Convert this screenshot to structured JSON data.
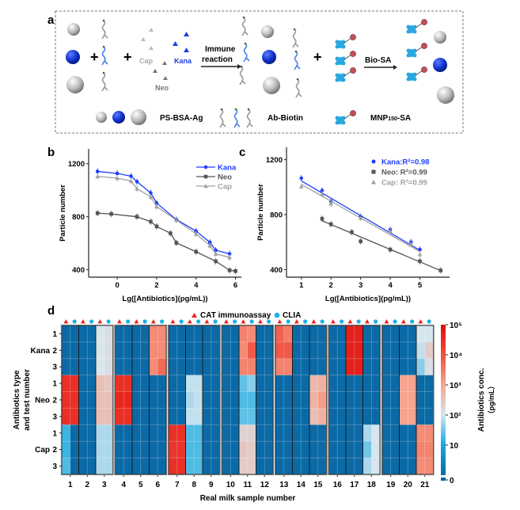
{
  "panel_labels": {
    "a": "a",
    "b": "b",
    "c": "c",
    "d": "d"
  },
  "scheme": {
    "cap": "Cap",
    "neo": "Neo",
    "kana": "Kana",
    "immune_line1": "Immune",
    "immune_line2": "reaction",
    "bio_sa": "Bio-SA",
    "ps_bsa_ag": "PS-BSA-Ag",
    "ab_biotin": "Ab-Biotin",
    "mnp_prefix": "MNP",
    "mnp_sub": "150",
    "mnp_suffix": "-SA",
    "colors": {
      "kana": "#1f3fe0",
      "neo": "#555555",
      "cap": "#9a9a9a",
      "mnp": "#2aa8e0",
      "bead": "#c0505a"
    }
  },
  "chart_data": [
    {
      "id": "b",
      "type": "line",
      "xlabel": "Lg([Antibiotics](pg/mL))",
      "ylabel": "Particle number",
      "xticks": [
        0,
        2,
        4,
        6
      ],
      "yticks": [
        400,
        800,
        1200
      ],
      "xlim": [
        -1.45,
        6.3
      ],
      "ylim": [
        344,
        1312
      ],
      "grid": false,
      "legend": "top-right",
      "series": [
        {
          "name": "Kana",
          "color": "#1f3fff",
          "marker": "circle",
          "x": [
            -1,
            0,
            0.7,
            1,
            1.7,
            2,
            3,
            4,
            4.7,
            5,
            5.7
          ],
          "y": [
            1142,
            1127,
            1106,
            1065,
            980,
            903,
            779,
            692,
            607,
            547,
            520
          ]
        },
        {
          "name": "Neo",
          "color": "#555555",
          "marker": "square",
          "x": [
            -1,
            -0.3,
            1,
            1.7,
            2,
            2.7,
            3,
            4,
            5,
            5.7,
            6
          ],
          "y": [
            827,
            821,
            800,
            763,
            727,
            675,
            603,
            536,
            464,
            396,
            390
          ]
        },
        {
          "name": "Cap",
          "color": "#a0a0a0",
          "marker": "triangle",
          "x": [
            -1,
            0,
            0.7,
            1,
            1.7,
            2,
            3,
            4,
            4.7,
            5,
            5.7
          ],
          "y": [
            1105,
            1091,
            1070,
            1012,
            950,
            877,
            775,
            671,
            582,
            520,
            493
          ]
        }
      ]
    },
    {
      "id": "c",
      "type": "scatter",
      "xlabel": "Lg([Antibiotics](pg/mL))",
      "ylabel": "Particle number",
      "xticks": [
        1,
        2,
        3,
        4,
        5
      ],
      "yticks": [
        400,
        800,
        1200
      ],
      "xlim": [
        0.5,
        6.0
      ],
      "ylim": [
        344,
        1290
      ],
      "grid": false,
      "legend": "top-right",
      "series": [
        {
          "name": "Kana:R²=0.98",
          "color": "#1f3fff",
          "marker": "circle",
          "x": [
            1,
            1.7,
            2,
            3,
            4,
            4.7,
            5
          ],
          "y": [
            1065,
            975,
            895,
            785,
            690,
            600,
            545
          ],
          "fit": {
            "x": [
              1,
              5
            ],
            "y": [
              1045,
              540
            ]
          }
        },
        {
          "name": "Neo: R²=0.99",
          "color": "#555555",
          "marker": "square",
          "x": [
            1.7,
            2,
            2.7,
            3,
            4,
            5,
            5.7
          ],
          "y": [
            770,
            730,
            672,
            605,
            545,
            460,
            393
          ],
          "fit": {
            "x": [
              1.7,
              5.7
            ],
            "y": [
              755,
              392
            ]
          }
        },
        {
          "name": "Cap: R²=0.99",
          "color": "#a0a0a0",
          "marker": "triangle",
          "x": [
            1,
            1.7,
            2,
            3,
            4,
            4.7,
            5
          ],
          "y": [
            1005,
            950,
            880,
            775,
            680,
            585,
            510
          ],
          "fit": {
            "x": [
              1,
              5
            ],
            "y": [
              1020,
              530
            ]
          }
        }
      ]
    },
    {
      "id": "d",
      "type": "heatmap",
      "xlabel": "Real milk sample number",
      "ylabel_line1": "Antibiotics type",
      "ylabel_line2": "and test number",
      "samples": [
        "1",
        "2",
        "3",
        "4",
        "5",
        "6",
        "7",
        "8",
        "9",
        "10",
        "11",
        "12",
        "13",
        "14",
        "15",
        "16",
        "17",
        "18",
        "19",
        "20",
        "21"
      ],
      "methods": [
        {
          "name": "CAT immunoassay",
          "marker": "triangle",
          "color": "#ee2222"
        },
        {
          "name": "CLIA",
          "marker": "circle",
          "color": "#1ab0ea"
        }
      ],
      "row_groups": [
        "Kana",
        "Neo",
        "Cap"
      ],
      "test_numbers": [
        "1",
        "2",
        "3"
      ],
      "colorbar": {
        "label_line1": "Antibiotics conc.",
        "label_line2": "（pg/mL）",
        "scale": "log",
        "ticks": [
          "10⁵",
          "10⁴",
          "10³",
          "10²",
          "10",
          "0"
        ],
        "stops": [
          "#0b6aa6",
          "#14a8e0",
          "#d6e6ef",
          "#f6a48e",
          "#ef5040",
          "#e00c0c"
        ]
      },
      "unit": "pg/mL",
      "values_note_order": "each row: sample 1 CAT, sample 1 CLIA, sample 2 CAT, ...",
      "values": [
        [
          0,
          0,
          0,
          0,
          100,
          130,
          0,
          0,
          0,
          0,
          2000,
          2000,
          0,
          0,
          0,
          0,
          0,
          0,
          0,
          0,
          2500,
          2000,
          0,
          0,
          6000,
          3000,
          0,
          0,
          0,
          0,
          0,
          0,
          50000,
          50000,
          0,
          0,
          0,
          0,
          0,
          0,
          100,
          100
        ],
        [
          0,
          0,
          0,
          0,
          100,
          130,
          0,
          0,
          0,
          0,
          2000,
          2000,
          0,
          0,
          0,
          0,
          0,
          0,
          0,
          0,
          2000,
          8000,
          0,
          0,
          8000,
          8000,
          0,
          0,
          0,
          0,
          0,
          0,
          50000,
          50000,
          0,
          0,
          0,
          0,
          0,
          0,
          80,
          250
        ],
        [
          0,
          0,
          0,
          0,
          100,
          130,
          0,
          0,
          0,
          0,
          2000,
          5000,
          0,
          0,
          0,
          0,
          0,
          0,
          0,
          0,
          2500,
          2500,
          0,
          0,
          2500,
          2500,
          0,
          0,
          0,
          0,
          0,
          0,
          50000,
          50000,
          0,
          0,
          0,
          0,
          0,
          0,
          40,
          130
        ],
        [
          30000,
          30000,
          0,
          0,
          400,
          300,
          30000,
          30000,
          0,
          0,
          0,
          0,
          0,
          0,
          80,
          80,
          0,
          0,
          0,
          0,
          25,
          40,
          0,
          0,
          0,
          0,
          0,
          0,
          500,
          600,
          0,
          0,
          0,
          0,
          0,
          0,
          0,
          0,
          1000,
          1000,
          0,
          0
        ],
        [
          30000,
          30000,
          0,
          0,
          400,
          400,
          40000,
          40000,
          0,
          0,
          0,
          0,
          0,
          0,
          60,
          80,
          0,
          0,
          0,
          0,
          20,
          20,
          0,
          0,
          0,
          0,
          0,
          0,
          600,
          1200,
          0,
          0,
          0,
          0,
          0,
          0,
          0,
          0,
          1000,
          1000,
          0,
          0
        ],
        [
          30000,
          30000,
          0,
          0,
          400,
          400,
          30000,
          30000,
          0,
          0,
          0,
          0,
          0,
          0,
          80,
          80,
          0,
          0,
          0,
          0,
          25,
          25,
          0,
          0,
          0,
          0,
          0,
          0,
          400,
          600,
          0,
          0,
          0,
          0,
          0,
          0,
          0,
          0,
          1000,
          1000,
          0,
          0
        ],
        [
          16,
          0,
          0,
          0,
          60,
          60,
          0,
          0,
          0,
          0,
          0,
          0,
          30000,
          30000,
          20,
          20,
          0,
          0,
          0,
          0,
          200,
          200,
          0,
          0,
          0,
          0,
          0,
          0,
          0,
          0,
          0,
          0,
          0,
          0,
          60,
          100,
          0,
          0,
          0,
          0,
          2000,
          2000
        ],
        [
          16,
          0,
          0,
          0,
          60,
          60,
          0,
          0,
          0,
          0,
          0,
          0,
          25000,
          25000,
          20,
          20,
          0,
          0,
          0,
          0,
          300,
          250,
          0,
          0,
          0,
          0,
          0,
          0,
          0,
          0,
          0,
          0,
          0,
          0,
          30,
          100,
          0,
          0,
          0,
          0,
          2500,
          2500
        ],
        [
          20,
          0,
          0,
          0,
          60,
          60,
          0,
          0,
          0,
          0,
          0,
          0,
          30000,
          30000,
          20,
          20,
          0,
          0,
          0,
          0,
          250,
          250,
          0,
          0,
          0,
          0,
          0,
          0,
          0,
          0,
          0,
          0,
          0,
          0,
          60,
          100,
          0,
          0,
          0,
          0,
          2000,
          2000
        ]
      ]
    }
  ]
}
